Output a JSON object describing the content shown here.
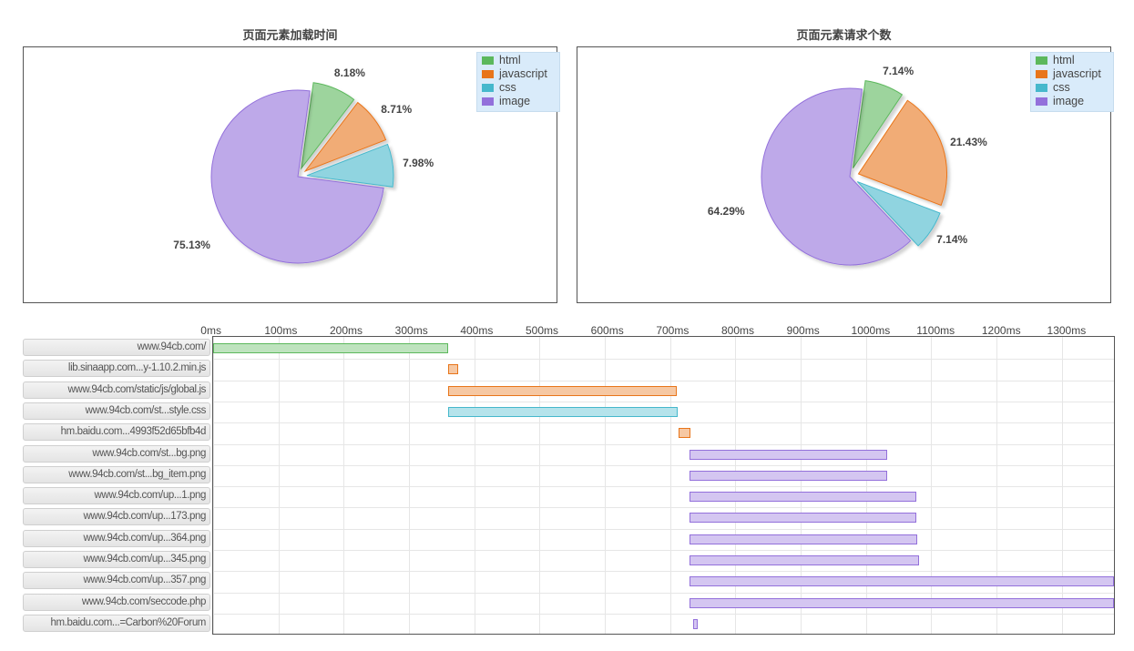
{
  "colors": {
    "html": "#5cb85c",
    "javascript": "#e8751a",
    "css": "#46b8cc",
    "image": "#9370db"
  },
  "chart_data": [
    {
      "type": "pie",
      "title": "页面元素加载时间",
      "legend_position": "top-right",
      "slices": [
        {
          "name": "html",
          "value": 8.18,
          "label": "8.18%"
        },
        {
          "name": "javascript",
          "value": 8.71,
          "label": "8.71%"
        },
        {
          "name": "css",
          "value": 7.98,
          "label": "7.98%"
        },
        {
          "name": "image",
          "value": 75.13,
          "label": "75.13%"
        }
      ]
    },
    {
      "type": "pie",
      "title": "页面元素请求个数",
      "legend_position": "top-right",
      "slices": [
        {
          "name": "html",
          "value": 7.14,
          "label": "7.14%"
        },
        {
          "name": "javascript",
          "value": 21.43,
          "label": "21.43%"
        },
        {
          "name": "css",
          "value": 7.14,
          "label": "7.14%"
        },
        {
          "name": "image",
          "value": 64.29,
          "label": "64.29%"
        }
      ]
    },
    {
      "type": "bar",
      "orientation": "horizontal-range",
      "xlim": [
        0,
        1380
      ],
      "x_ticks": [
        "0ms",
        "100ms",
        "200ms",
        "300ms",
        "400ms",
        "500ms",
        "600ms",
        "700ms",
        "800ms",
        "900ms",
        "1000ms",
        "1100ms",
        "1200ms",
        "1300ms"
      ],
      "x_tick_values": [
        0,
        100,
        200,
        300,
        400,
        500,
        600,
        700,
        800,
        900,
        1000,
        1100,
        1200,
        1300
      ],
      "grid": true,
      "rows": [
        {
          "label": "www.94cb.com/",
          "type": "html",
          "start": 0,
          "end": 360
        },
        {
          "label": "lib.sinaapp.com...y-1.10.2.min.js",
          "type": "javascript",
          "start": 360,
          "end": 376
        },
        {
          "label": "www.94cb.com/static/js/global.js",
          "type": "javascript",
          "start": 360,
          "end": 710
        },
        {
          "label": "www.94cb.com/st...style.css",
          "type": "css",
          "start": 360,
          "end": 711
        },
        {
          "label": "hm.baidu.com...4993f52d65bfb4d",
          "type": "javascript",
          "start": 713,
          "end": 731
        },
        {
          "label": "www.94cb.com/st...bg.png",
          "type": "image",
          "start": 730,
          "end": 1032
        },
        {
          "label": "www.94cb.com/st...bg_item.png",
          "type": "image",
          "start": 730,
          "end": 1032
        },
        {
          "label": "www.94cb.com/up...1.png",
          "type": "image",
          "start": 730,
          "end": 1077
        },
        {
          "label": "www.94cb.com/up...173.png",
          "type": "image",
          "start": 730,
          "end": 1077
        },
        {
          "label": "www.94cb.com/up...364.png",
          "type": "image",
          "start": 730,
          "end": 1078
        },
        {
          "label": "www.94cb.com/up...345.png",
          "type": "image",
          "start": 730,
          "end": 1082
        },
        {
          "label": "www.94cb.com/up...357.png",
          "type": "image",
          "start": 730,
          "end": 1380
        },
        {
          "label": "www.94cb.com/seccode.php",
          "type": "image",
          "start": 730,
          "end": 1380
        },
        {
          "label": "hm.baidu.com...=Carbon%20Forum",
          "type": "image",
          "start": 736,
          "end": 742
        }
      ]
    }
  ]
}
